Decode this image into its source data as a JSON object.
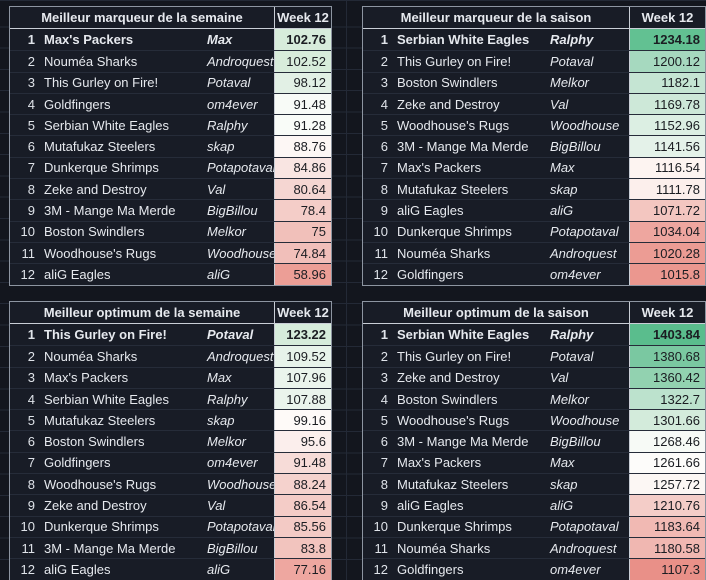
{
  "app": {
    "week_label": "Week 12",
    "colors": {
      "scale_green": "#57bb8a",
      "scale_red": "#e67c73",
      "page_bg": "#13161e",
      "table_bg": "#181c26"
    }
  },
  "tables": [
    {
      "id": "marqueur-semaine",
      "title": "Meilleur marqueur de la semaine",
      "week_label": "Week 12",
      "rows": [
        {
          "rank": "1",
          "team": "Max's Packers",
          "owner": "Max",
          "value": "102.76",
          "value_bg": "#d7ecdb"
        },
        {
          "rank": "2",
          "team": "Nouméa Sharks",
          "owner": "Androquest",
          "value": "102.52",
          "value_bg": "#d8ecdb"
        },
        {
          "rank": "3",
          "team": "This Gurley on Fire!",
          "owner": "Potaval",
          "value": "98.12",
          "value_bg": "#e2f0e5"
        },
        {
          "rank": "4",
          "team": "Goldfingers",
          "owner": "om4ever",
          "value": "91.48",
          "value_bg": "#f8fbf7"
        },
        {
          "rank": "5",
          "team": "Serbian White Eagles",
          "owner": "Ralphy",
          "value": "91.28",
          "value_bg": "#f9fcf8"
        },
        {
          "rank": "6",
          "team": "Mutafukaz Steelers",
          "owner": "skap",
          "value": "88.76",
          "value_bg": "#fdf7f5"
        },
        {
          "rank": "7",
          "team": "Dunkerque Shrimps",
          "owner": "Potapotaval",
          "value": "84.86",
          "value_bg": "#f9e5e2"
        },
        {
          "rank": "8",
          "team": "Zeke and Destroy",
          "owner": "Val",
          "value": "80.64",
          "value_bg": "#f5d6d2"
        },
        {
          "rank": "9",
          "team": "3M - Mange Ma Merde",
          "owner": "BigBillou",
          "value": "78.4",
          "value_bg": "#f4cdc8"
        },
        {
          "rank": "10",
          "team": "Boston Swindlers",
          "owner": "Melkor",
          "value": "75",
          "value_bg": "#f1c0ba"
        },
        {
          "rank": "11",
          "team": "Woodhouse's Rugs",
          "owner": "Woodhouse",
          "value": "74.84",
          "value_bg": "#f1bfba"
        },
        {
          "rank": "12",
          "team": "aliG Eagles",
          "owner": "aliG",
          "value": "58.96",
          "value_bg": "#ec9e96"
        }
      ]
    },
    {
      "id": "marqueur-saison",
      "title": "Meilleur marqueur de la saison",
      "week_label": "Week 12",
      "rows": [
        {
          "rank": "1",
          "team": "Serbian White Eagles",
          "owner": "Ralphy",
          "value": "1234.18",
          "value_bg": "#62c192"
        },
        {
          "rank": "2",
          "team": "This Gurley on Fire!",
          "owner": "Potaval",
          "value": "1200.12",
          "value_bg": "#a6d9bf"
        },
        {
          "rank": "3",
          "team": "Boston Swindlers",
          "owner": "Melkor",
          "value": "1182.1",
          "value_bg": "#c5e5d3"
        },
        {
          "rank": "4",
          "team": "Zeke and Destroy",
          "owner": "Val",
          "value": "1169.78",
          "value_bg": "#cde8d8"
        },
        {
          "rank": "5",
          "team": "Woodhouse's Rugs",
          "owner": "Woodhouse",
          "value": "1152.96",
          "value_bg": "#dcefe3"
        },
        {
          "rank": "6",
          "team": "3M - Mange Ma Merde",
          "owner": "BigBillou",
          "value": "1141.56",
          "value_bg": "#e4f2e9"
        },
        {
          "rank": "7",
          "team": "Max's Packers",
          "owner": "Max",
          "value": "1116.54",
          "value_bg": "#fdf4f1"
        },
        {
          "rank": "8",
          "team": "Mutafukaz Steelers",
          "owner": "skap",
          "value": "1111.78",
          "value_bg": "#fcefec"
        },
        {
          "rank": "9",
          "team": "aliG Eagles",
          "owner": "aliG",
          "value": "1071.72",
          "value_bg": "#f3c6c0"
        },
        {
          "rank": "10",
          "team": "Dunkerque Shrimps",
          "owner": "Potapotaval",
          "value": "1034.04",
          "value_bg": "#eea69f"
        },
        {
          "rank": "11",
          "team": "Nouméa Sharks",
          "owner": "Androquest",
          "value": "1020.28",
          "value_bg": "#ec9c94"
        },
        {
          "rank": "12",
          "team": "Goldfingers",
          "owner": "om4ever",
          "value": "1015.8",
          "value_bg": "#eb978f"
        }
      ]
    },
    {
      "id": "optimum-semaine",
      "title": "Meilleur optimum de la semaine",
      "week_label": "Week 12",
      "rows": [
        {
          "rank": "1",
          "team": "This Gurley on Fire!",
          "owner": "Potaval",
          "value": "123.22",
          "value_bg": "#d6ecdb"
        },
        {
          "rank": "2",
          "team": "Nouméa Sharks",
          "owner": "Androquest",
          "value": "109.52",
          "value_bg": "#e7f3ea"
        },
        {
          "rank": "3",
          "team": "Max's Packers",
          "owner": "Max",
          "value": "107.96",
          "value_bg": "#eaf4ec"
        },
        {
          "rank": "4",
          "team": "Serbian White Eagles",
          "owner": "Ralphy",
          "value": "107.88",
          "value_bg": "#eaf4ec"
        },
        {
          "rank": "5",
          "team": "Mutafukaz Steelers",
          "owner": "skap",
          "value": "99.16",
          "value_bg": "#fefaf8"
        },
        {
          "rank": "6",
          "team": "Boston Swindlers",
          "owner": "Melkor",
          "value": "95.6",
          "value_bg": "#fbeeec"
        },
        {
          "rank": "7",
          "team": "Goldfingers",
          "owner": "om4ever",
          "value": "91.48",
          "value_bg": "#f7dcd8"
        },
        {
          "rank": "8",
          "team": "Woodhouse's Rugs",
          "owner": "Woodhouse",
          "value": "88.24",
          "value_bg": "#f5d2cd"
        },
        {
          "rank": "9",
          "team": "Zeke and Destroy",
          "owner": "Val",
          "value": "86.54",
          "value_bg": "#f4ccc7"
        },
        {
          "rank": "10",
          "team": "Dunkerque Shrimps",
          "owner": "Potapotaval",
          "value": "85.56",
          "value_bg": "#f3cac5"
        },
        {
          "rank": "11",
          "team": "3M - Mange Ma Merde",
          "owner": "BigBillou",
          "value": "83.8",
          "value_bg": "#f2c4be"
        },
        {
          "rank": "12",
          "team": "aliG Eagles",
          "owner": "aliG",
          "value": "77.16",
          "value_bg": "#eea7a0"
        }
      ]
    },
    {
      "id": "optimum-saison",
      "title": "Meilleur optimum de la saison",
      "week_label": "Week 12",
      "rows": [
        {
          "rank": "1",
          "team": "Serbian White Eagles",
          "owner": "Ralphy",
          "value": "1403.84",
          "value_bg": "#5abd8d"
        },
        {
          "rank": "2",
          "team": "This Gurley on Fire!",
          "owner": "Potaval",
          "value": "1380.68",
          "value_bg": "#7ac8a1"
        },
        {
          "rank": "3",
          "team": "Zeke and Destroy",
          "owner": "Val",
          "value": "1360.42",
          "value_bg": "#92d2b0"
        },
        {
          "rank": "4",
          "team": "Boston Swindlers",
          "owner": "Melkor",
          "value": "1322.7",
          "value_bg": "#bce2cd"
        },
        {
          "rank": "5",
          "team": "Woodhouse's Rugs",
          "owner": "Woodhouse",
          "value": "1301.66",
          "value_bg": "#d3ebdb"
        },
        {
          "rank": "6",
          "team": "3M - Mange Ma Merde",
          "owner": "BigBillou",
          "value": "1268.46",
          "value_bg": "#f7faf6"
        },
        {
          "rank": "7",
          "team": "Max's Packers",
          "owner": "Max",
          "value": "1261.66",
          "value_bg": "#fdfcfa"
        },
        {
          "rank": "8",
          "team": "Mutafukaz Steelers",
          "owner": "skap",
          "value": "1257.72",
          "value_bg": "#fcf7f4"
        },
        {
          "rank": "9",
          "team": "aliG Eagles",
          "owner": "aliG",
          "value": "1210.76",
          "value_bg": "#f4cdc8"
        },
        {
          "rank": "10",
          "team": "Dunkerque Shrimps",
          "owner": "Potapotaval",
          "value": "1183.64",
          "value_bg": "#f1b9b3"
        },
        {
          "rank": "11",
          "team": "Nouméa Sharks",
          "owner": "Androquest",
          "value": "1180.58",
          "value_bg": "#f0b7b1"
        },
        {
          "rank": "12",
          "team": "Goldfingers",
          "owner": "om4ever",
          "value": "1107.3",
          "value_bg": "#e99088"
        }
      ]
    }
  ]
}
